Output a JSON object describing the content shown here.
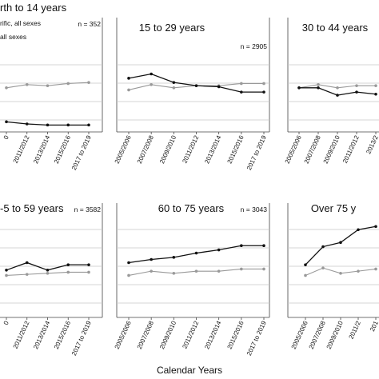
{
  "xlabel": "Calendar Years",
  "legend": {
    "line1": "rific, all sexes",
    "line2": "all sexes"
  },
  "chart_data": [
    {
      "type": "line",
      "title": "rth to 14 years",
      "n": "n = 352",
      "categories": [
        "0",
        "2011/2012",
        "2013/2014",
        "2015/2016",
        "2017 to 2019"
      ],
      "ylim": [
        0,
        10
      ],
      "series": [
        {
          "values": [
            4.0,
            4.3,
            4.2,
            4.4,
            4.5
          ],
          "color": "#999999"
        },
        {
          "values": [
            0.8,
            0.6,
            0.5,
            0.5,
            0.5
          ],
          "color": "#111111"
        }
      ]
    },
    {
      "type": "line",
      "title": "15 to 29 years",
      "n": "n = 2905",
      "categories": [
        "2005/2006",
        "2007/2008",
        "2009/2010",
        "2011/2012",
        "2013/2014",
        "2015/2016",
        "2017 to 2019"
      ],
      "ylim": [
        0,
        10
      ],
      "series": [
        {
          "values": [
            3.8,
            4.3,
            4.0,
            4.2,
            4.2,
            4.4,
            4.4
          ],
          "color": "#999999"
        },
        {
          "values": [
            4.9,
            5.3,
            4.5,
            4.2,
            4.1,
            3.6,
            3.6
          ],
          "color": "#111111"
        }
      ]
    },
    {
      "type": "line",
      "title": "30 to 44 years",
      "n": "",
      "categories": [
        "2005/2006",
        "2007/2008",
        "2009/2010",
        "2011/2012",
        "2013/2"
      ],
      "ylim": [
        0,
        10
      ],
      "series": [
        {
          "values": [
            4.0,
            4.3,
            4.0,
            4.2,
            4.2
          ],
          "color": "#999999"
        },
        {
          "values": [
            4.0,
            4.0,
            3.3,
            3.6,
            3.4
          ],
          "color": "#111111"
        }
      ]
    },
    {
      "type": "line",
      "title": "-5 to 59 years",
      "n": "n = 3582",
      "categories": [
        "0",
        "2011/2012",
        "2013/2014",
        "2015/2016",
        "2017 to 2019"
      ],
      "ylim": [
        0,
        10
      ],
      "series": [
        {
          "values": [
            3.8,
            3.9,
            4.0,
            4.1,
            4.1
          ],
          "color": "#999999"
        },
        {
          "values": [
            4.3,
            5.0,
            4.3,
            4.8,
            4.8
          ],
          "color": "#111111"
        }
      ]
    },
    {
      "type": "line",
      "title": "60 to 75 years",
      "n": "n = 3043",
      "categories": [
        "2005/2006",
        "2007/2008",
        "2009/2010",
        "2011/2012",
        "2013/2014",
        "2015/2016",
        "2017 to 2019"
      ],
      "ylim": [
        0,
        10
      ],
      "series": [
        {
          "values": [
            3.8,
            4.2,
            4.0,
            4.2,
            4.2,
            4.4,
            4.4
          ],
          "color": "#999999"
        },
        {
          "values": [
            5.0,
            5.3,
            5.5,
            5.9,
            6.2,
            6.6,
            6.6
          ],
          "color": "#111111"
        }
      ]
    },
    {
      "type": "line",
      "title": "Over 75 y",
      "n": "",
      "categories": [
        "2005/2006",
        "2007/2008",
        "2009/2010",
        "2011/2",
        "201"
      ],
      "ylim": [
        0,
        10
      ],
      "series": [
        {
          "values": [
            3.8,
            4.5,
            4.0,
            4.2,
            4.4
          ],
          "color": "#999999"
        },
        {
          "values": [
            4.8,
            6.5,
            6.9,
            8.1,
            8.4
          ],
          "color": "#111111"
        }
      ]
    }
  ]
}
